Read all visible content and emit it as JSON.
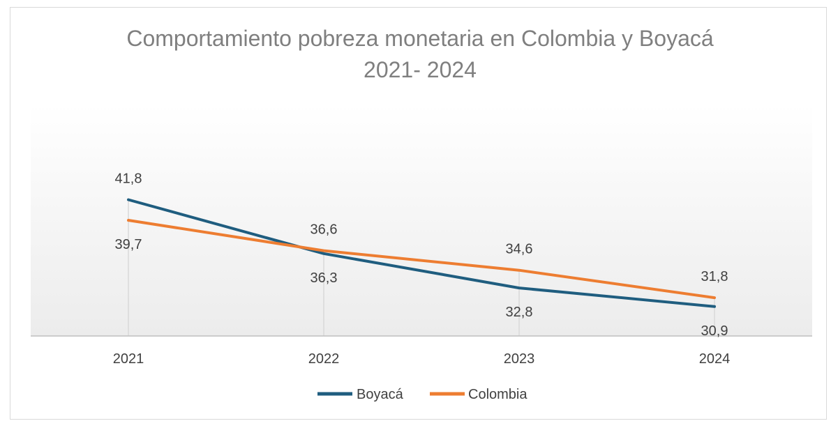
{
  "chart_data": {
    "type": "line",
    "title_lines": [
      "Comportamiento pobreza monetaria en Colombia y Boyacá",
      "2021- 2024"
    ],
    "categories": [
      "2021",
      "2022",
      "2023",
      "2024"
    ],
    "series": [
      {
        "name": "Boyacá",
        "color": "#1f5d7f",
        "values": [
          41.8,
          36.3,
          32.8,
          30.9
        ],
        "labels": [
          "41,8",
          "36,3",
          "32,8",
          "30,9"
        ],
        "label_position": [
          "above",
          "below",
          "below",
          "below"
        ]
      },
      {
        "name": "Colombia",
        "color": "#ed7d31",
        "values": [
          39.7,
          36.6,
          34.6,
          31.8
        ],
        "labels": [
          "39,7",
          "36,6",
          "34,6",
          "31,8"
        ],
        "label_position": [
          "below",
          "above",
          "above",
          "above"
        ]
      }
    ],
    "ylim": [
      27.9,
      51.5
    ],
    "grid": "vertical drop lines",
    "legend_position": "bottom"
  }
}
